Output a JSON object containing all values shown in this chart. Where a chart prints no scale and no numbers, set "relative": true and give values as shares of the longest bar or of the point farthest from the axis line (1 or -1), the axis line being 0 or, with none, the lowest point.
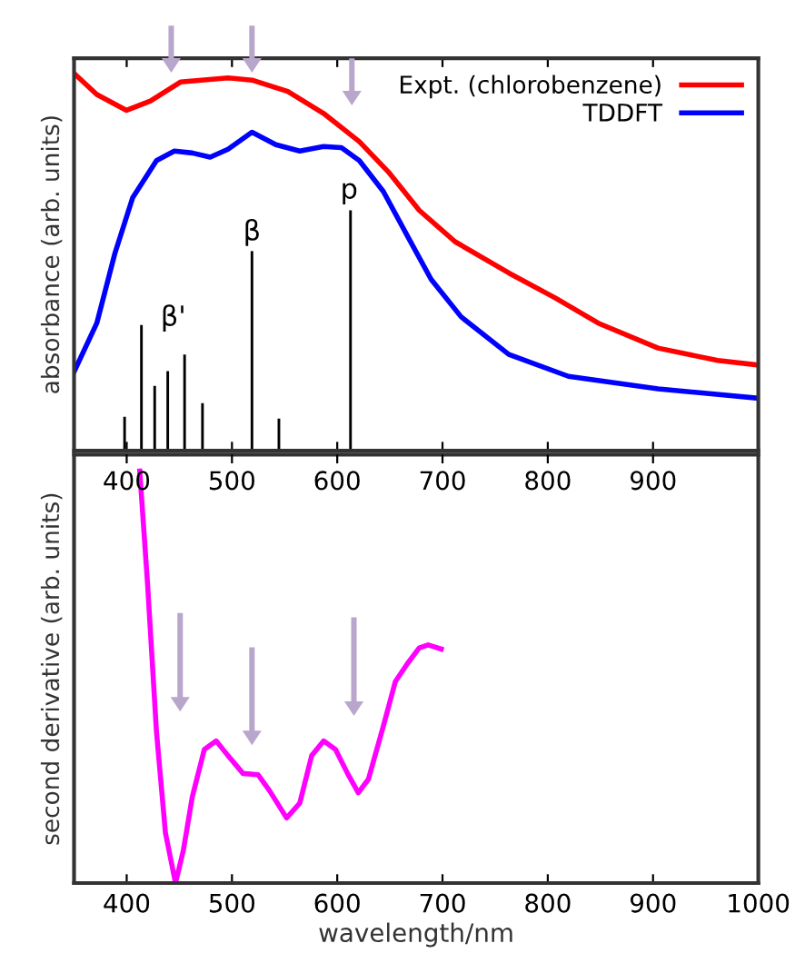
{
  "chart_data": [
    {
      "type": "line",
      "ylabel": "absorbance (arb. units)",
      "relative": true,
      "xlim": [
        350,
        1000
      ],
      "xticks": [
        400,
        500,
        600,
        700,
        800,
        900
      ],
      "tick_labels": false,
      "legend": "top right",
      "grid": false,
      "series": [
        {
          "name": "Expt. (chlorobenzene)",
          "color": "#ff0000",
          "x": [
            350,
            371.6,
            399.9,
            422.6,
            451,
            496.3,
            519,
            553,
            587,
            621,
            649.5,
            677.9,
            711.9,
            763,
            807,
            848,
            904.7,
            961.5,
            1000
          ],
          "values": [
            1.0,
            0.944,
            0.902,
            0.927,
            0.977,
            0.988,
            0.982,
            0.952,
            0.894,
            0.819,
            0.736,
            0.637,
            0.554,
            0.471,
            0.405,
            0.338,
            0.272,
            0.239,
            0.227
          ]
        },
        {
          "name": "TDDFT",
          "color": "#0000ff",
          "x": [
            350,
            371.6,
            388.6,
            405.6,
            428.3,
            445.3,
            462.3,
            479.3,
            496.3,
            519,
            541.7,
            564.4,
            587,
            604,
            621,
            643.8,
            666.5,
            689.2,
            717.6,
            763,
            819.7,
            904.7,
            1000
          ],
          "values": [
            0.209,
            0.338,
            0.521,
            0.67,
            0.769,
            0.794,
            0.789,
            0.778,
            0.799,
            0.844,
            0.811,
            0.794,
            0.806,
            0.803,
            0.769,
            0.687,
            0.57,
            0.454,
            0.355,
            0.255,
            0.197,
            0.164,
            0.139
          ]
        },
        {
          "type": "bar",
          "color": "#000000",
          "x": [
            398,
            414,
            426.6,
            439,
            455,
            472,
            519,
            544.6,
            612.6
          ],
          "values": [
            0.09,
            0.333,
            0.172,
            0.211,
            0.255,
            0.126,
            0.529,
            0.085,
            0.637
          ]
        }
      ],
      "annotations": [
        "β'",
        "β",
        "p"
      ]
    },
    {
      "type": "line",
      "ylabel": "second derivative (arb. units)",
      "xlabel": "wavelength/nm",
      "relative": true,
      "xlim": [
        350,
        1000
      ],
      "xticks": [
        400,
        500,
        600,
        700,
        800,
        900,
        1000
      ],
      "x2lim": [
        350,
        1000
      ],
      "x2ticks": [
        400,
        500,
        600,
        700,
        800,
        900
      ],
      "tick_labels": "x",
      "grid": false,
      "series": [
        {
          "color": "#ff00ff",
          "x": [
            412.4,
            419.8,
            428.3,
            436.8,
            446.4,
            453.8,
            462.3,
            473.7,
            485,
            496.3,
            510.5,
            524.7,
            536,
            551.9,
            564.4,
            575.7,
            587.1,
            598.4,
            609.8,
            620,
            629.6,
            643.8,
            655.2,
            666.5,
            677.9,
            686.4,
            698.8
          ],
          "values": [
            1.0,
            0.727,
            0.367,
            0.122,
            0,
            0.079,
            0.209,
            0.324,
            0.345,
            0.309,
            0.266,
            0.263,
            0.223,
            0.158,
            0.194,
            0.309,
            0.345,
            0.324,
            0.266,
            0.219,
            0.252,
            0.381,
            0.489,
            0.532,
            0.571,
            0.578,
            0.568
          ]
        }
      ]
    }
  ]
}
